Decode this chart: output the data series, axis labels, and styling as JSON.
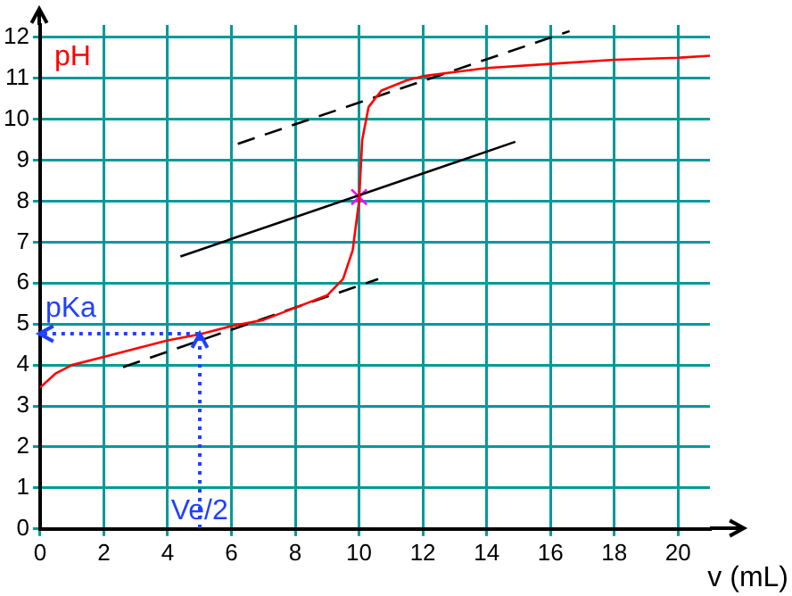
{
  "chart_data": {
    "type": "line",
    "xlabel": "v (mL)",
    "ylabel": "pH",
    "xlim": [
      0,
      21
    ],
    "ylim": [
      0,
      12.3
    ],
    "xticks": [
      0,
      2,
      4,
      6,
      8,
      10,
      12,
      14,
      16,
      18,
      20
    ],
    "yticks": [
      0,
      1,
      2,
      3,
      4,
      5,
      6,
      7,
      8,
      9,
      10,
      11,
      12
    ],
    "grid": true,
    "marker": "none",
    "series": [
      {
        "color": "#ff0000",
        "x": [
          0,
          0.5,
          1,
          2,
          3,
          4,
          5,
          6,
          7,
          8,
          9,
          9.5,
          9.8,
          10,
          10.1,
          10.3,
          10.7,
          11.5,
          12,
          13,
          14,
          16,
          18,
          20,
          21
        ],
        "values": [
          3.45,
          3.8,
          4.0,
          4.2,
          4.4,
          4.6,
          4.75,
          4.95,
          5.1,
          5.4,
          5.7,
          6.1,
          6.8,
          8.0,
          9.5,
          10.3,
          10.7,
          10.95,
          11.05,
          11.15,
          11.25,
          11.35,
          11.45,
          11.5,
          11.55
        ]
      },
      {
        "color": "#000000",
        "line_style": "dashed",
        "x": [
          6.2,
          16.6
        ],
        "values": [
          9.4,
          12.15
        ]
      },
      {
        "color": "#000000",
        "line_style": "solid",
        "x": [
          4.4,
          14.9
        ],
        "values": [
          6.65,
          9.45
        ]
      },
      {
        "color": "#000000",
        "line_style": "dashed",
        "x": [
          2.6,
          10.6
        ],
        "values": [
          3.95,
          6.1
        ]
      },
      {
        "type": "scatter",
        "marker": "cross",
        "color": "#ff00ff",
        "x": [
          10
        ],
        "values": [
          8.1
        ]
      }
    ],
    "annotations": [
      {
        "text": "pKa",
        "x": 5,
        "y": 4.75
      },
      {
        "text": "Ve/2",
        "x": 5,
        "y": 4.75
      }
    ]
  }
}
